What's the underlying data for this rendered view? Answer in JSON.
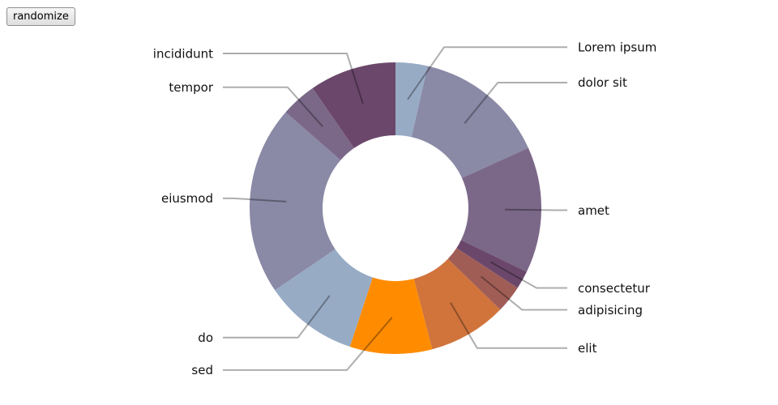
{
  "controls": {
    "randomize_label": "randomize"
  },
  "chart_data": {
    "type": "pie",
    "title": "",
    "categories": [
      "Lorem ipsum",
      "dolor sit",
      "amet",
      "consectetur",
      "adipisicing",
      "elit",
      "sed",
      "do",
      "eiusmod",
      "tempor",
      "incididunt"
    ],
    "values": [
      3.5,
      14.5,
      13.8,
      2.0,
      3.0,
      8.6,
      9.0,
      10.3,
      20.7,
      3.9,
      9.5
    ],
    "unit": "",
    "inner_radius_ratio": 0.5,
    "colors": [
      "#98abc5",
      "#8a89a6",
      "#7b6888",
      "#6b486b",
      "#a05d56",
      "#d0743c",
      "#ff8c00",
      "#98abc5",
      "#8a89a6",
      "#7b6888",
      "#6b486b"
    ],
    "legend": "none"
  }
}
